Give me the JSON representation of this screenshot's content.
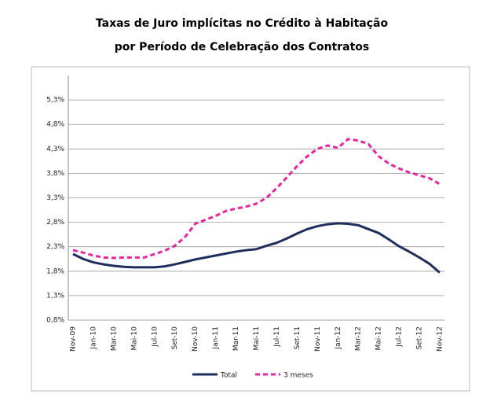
{
  "chart_data": {
    "type": "line",
    "title": "Taxas de Juro implícitas no Crédito à Habitação",
    "subtitle": "por Período de Celebração dos Contratos",
    "categories": [
      "Nov-09",
      null,
      "Jan-10",
      null,
      "Mar-10",
      null,
      "Mai-10",
      null,
      "Jul-10",
      null,
      "Set-10",
      null,
      "Nov-10",
      null,
      "Jan-11",
      null,
      "Mar-11",
      null,
      "Mai-11",
      null,
      "Jul-11",
      null,
      "Set-11",
      null,
      "Nov-11",
      null,
      "Jan-12",
      null,
      "Mar-12",
      null,
      "Mai-12",
      null,
      "Jul-12",
      null,
      "Set-12",
      null,
      "Nov-12"
    ],
    "series": [
      {
        "name": "Total",
        "color": "#1f2d5c",
        "dashed": false,
        "values": [
          2.15,
          2.05,
          1.98,
          1.94,
          1.91,
          1.89,
          1.88,
          1.88,
          1.88,
          1.9,
          1.94,
          1.99,
          2.04,
          2.08,
          2.12,
          2.16,
          2.2,
          2.23,
          2.25,
          2.32,
          2.38,
          2.47,
          2.57,
          2.66,
          2.72,
          2.76,
          2.78,
          2.77,
          2.74,
          2.66,
          2.58,
          2.45,
          2.31,
          2.2,
          2.08,
          1.95,
          1.77
        ]
      },
      {
        "name": "3 meses",
        "color": "#e6259e",
        "dashed": true,
        "values": [
          2.23,
          2.18,
          2.12,
          2.08,
          2.07,
          2.08,
          2.08,
          2.08,
          2.15,
          2.22,
          2.32,
          2.5,
          2.77,
          2.85,
          2.93,
          3.03,
          3.08,
          3.12,
          3.18,
          3.3,
          3.5,
          3.72,
          3.95,
          4.15,
          4.3,
          4.37,
          4.32,
          4.5,
          4.47,
          4.4,
          4.15,
          4.0,
          3.9,
          3.82,
          3.76,
          3.7,
          3.58
        ]
      }
    ],
    "ylim": [
      0.8,
      5.8
    ],
    "yticks": [
      {
        "value": 0.8,
        "label": "0,8%"
      },
      {
        "value": 1.3,
        "label": "1,3%"
      },
      {
        "value": 1.8,
        "label": "1,8%"
      },
      {
        "value": 2.3,
        "label": "2,3%"
      },
      {
        "value": 2.8,
        "label": "2,8%"
      },
      {
        "value": 3.3,
        "label": "3,3%"
      },
      {
        "value": 3.8,
        "label": "3,8%"
      },
      {
        "value": 4.3,
        "label": "4,3%"
      },
      {
        "value": 4.8,
        "label": "4,8%"
      },
      {
        "value": 5.3,
        "label": "5,3%"
      }
    ],
    "grid": true
  }
}
